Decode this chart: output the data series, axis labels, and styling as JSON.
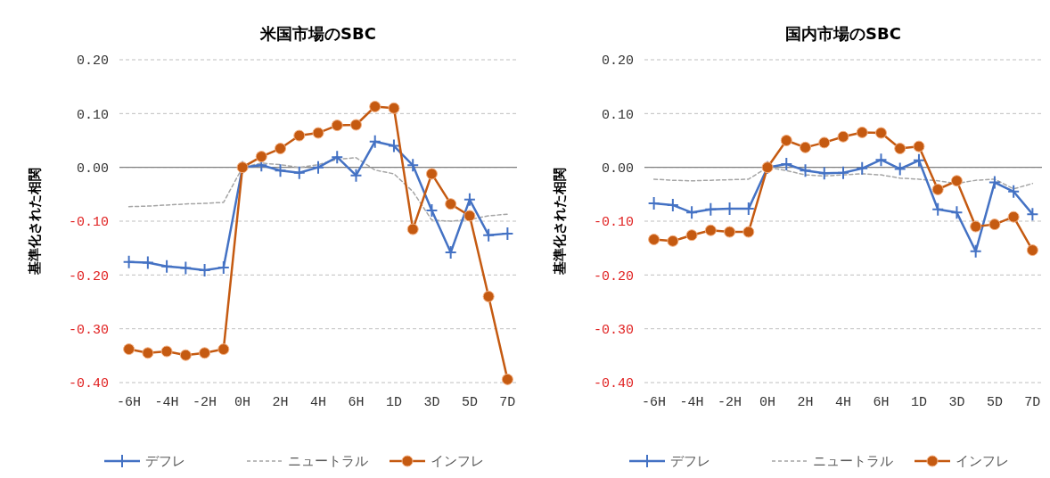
{
  "chart_data": [
    {
      "type": "line",
      "title": "米国市場のSBC",
      "ylabel": "基準化された相関",
      "categories": [
        "-6H",
        null,
        "-4H",
        null,
        "-2H",
        null,
        "0H",
        null,
        "2H",
        null,
        "4H",
        null,
        "6H",
        null,
        "1D",
        null,
        "3D",
        null,
        "5D",
        null,
        "7D"
      ],
      "series": [
        {
          "name": "デフレ",
          "color": "#4472c4",
          "marker": "cross",
          "line_style": "solid",
          "values": [
            -0.176,
            -0.177,
            -0.184,
            -0.187,
            -0.191,
            -0.186,
            0.0,
            0.004,
            -0.006,
            -0.01,
            0.0,
            0.019,
            -0.015,
            0.048,
            0.04,
            0.004,
            -0.08,
            -0.158,
            -0.06,
            -0.126,
            -0.123
          ]
        },
        {
          "name": "ニュートラル",
          "color": "#a5a5a5",
          "marker": "none",
          "line_style": "dashed",
          "values": [
            -0.073,
            -0.072,
            -0.07,
            -0.068,
            -0.067,
            -0.065,
            0.0,
            0.008,
            0.005,
            0.0,
            0.005,
            0.015,
            0.018,
            -0.005,
            -0.012,
            -0.045,
            -0.098,
            -0.1,
            -0.097,
            -0.09,
            -0.087
          ]
        },
        {
          "name": "インフレ",
          "color": "#c55a11",
          "marker": "circle",
          "line_style": "solid",
          "values": [
            -0.338,
            -0.345,
            -0.342,
            -0.349,
            -0.345,
            -0.338,
            0.0,
            0.02,
            0.035,
            0.059,
            0.064,
            0.078,
            0.079,
            0.113,
            0.11,
            -0.115,
            -0.012,
            -0.068,
            -0.09,
            -0.24,
            -0.394
          ]
        }
      ],
      "ylim": [
        -0.4,
        0.2
      ],
      "yticks": [
        {
          "value": 0.2,
          "label": "0.20"
        },
        {
          "value": 0.1,
          "label": "0.10"
        },
        {
          "value": 0,
          "label": "0.00"
        },
        {
          "value": -0.1,
          "label": "-0.10"
        },
        {
          "value": -0.2,
          "label": "-0.20"
        },
        {
          "value": -0.3,
          "label": "-0.30"
        },
        {
          "value": -0.4,
          "label": "-0.40"
        }
      ],
      "grid": "y",
      "legend": "bottom"
    },
    {
      "type": "line",
      "title": "国内市場のSBC",
      "ylabel": "基準化された相関",
      "categories": [
        "-6H",
        null,
        "-4H",
        null,
        "-2H",
        null,
        "0H",
        null,
        "2H",
        null,
        "4H",
        null,
        "6H",
        null,
        "1D",
        null,
        "3D",
        null,
        "5D",
        null,
        "7D"
      ],
      "series": [
        {
          "name": "デフレ",
          "color": "#4472c4",
          "marker": "cross",
          "line_style": "solid",
          "values": [
            -0.067,
            -0.07,
            -0.084,
            -0.078,
            -0.077,
            -0.077,
            0.0,
            0.006,
            -0.006,
            -0.011,
            -0.01,
            -0.002,
            0.014,
            -0.003,
            0.013,
            -0.078,
            -0.084,
            -0.156,
            -0.028,
            -0.045,
            -0.087
          ]
        },
        {
          "name": "ニュートラル",
          "color": "#a5a5a5",
          "marker": "none",
          "line_style": "dashed",
          "values": [
            -0.022,
            -0.024,
            -0.025,
            -0.024,
            -0.023,
            -0.022,
            0.0,
            -0.006,
            -0.014,
            -0.016,
            -0.014,
            -0.012,
            -0.014,
            -0.02,
            -0.022,
            -0.025,
            -0.03,
            -0.024,
            -0.022,
            -0.04,
            -0.03
          ]
        },
        {
          "name": "インフレ",
          "color": "#c55a11",
          "marker": "circle",
          "line_style": "solid",
          "values": [
            -0.134,
            -0.137,
            -0.126,
            -0.117,
            -0.12,
            -0.12,
            0.0,
            0.05,
            0.037,
            0.046,
            0.057,
            0.065,
            0.064,
            0.035,
            0.039,
            -0.041,
            -0.025,
            -0.11,
            -0.106,
            -0.092,
            -0.154
          ]
        }
      ],
      "ylim": [
        -0.4,
        0.2
      ],
      "yticks": [
        {
          "value": 0.2,
          "label": "0.20"
        },
        {
          "value": 0.1,
          "label": "0.10"
        },
        {
          "value": 0,
          "label": "0.00"
        },
        {
          "value": -0.1,
          "label": "-0.10"
        },
        {
          "value": -0.2,
          "label": "-0.20"
        },
        {
          "value": -0.3,
          "label": "-0.30"
        },
        {
          "value": -0.4,
          "label": "-0.40"
        }
      ],
      "grid": "y",
      "legend": "bottom"
    }
  ]
}
